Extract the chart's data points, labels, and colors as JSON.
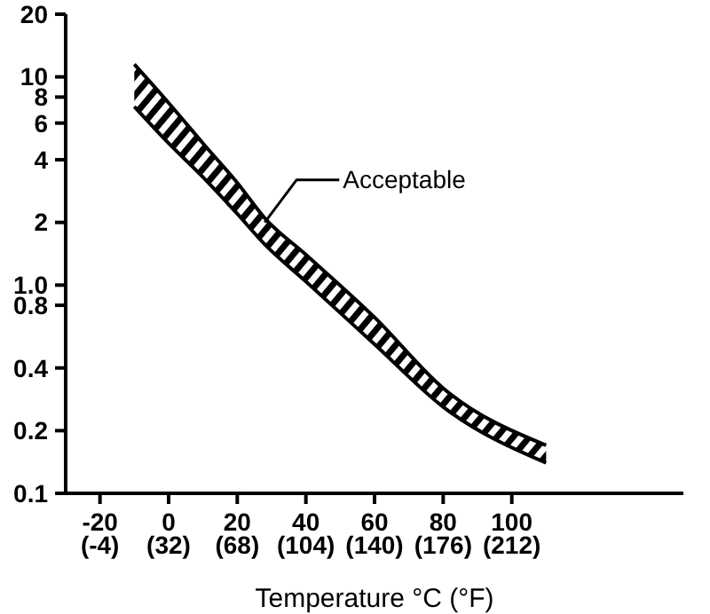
{
  "chart_data": {
    "type": "line",
    "xlabel": "Temperature °C (°F)",
    "x": [
      -10,
      0,
      10,
      20,
      28,
      40,
      60,
      80,
      110
    ],
    "series": [
      {
        "color": "#000000",
        "values": [
          7.2,
          4.8,
          3.3,
          2.2,
          1.57,
          1.04,
          0.52,
          0.26,
          0.14
        ]
      },
      {
        "color": "#000000",
        "values": [
          11.5,
          7.5,
          4.8,
          3.1,
          2.1,
          1.4,
          0.7,
          0.32,
          0.17
        ],
        "lower": [
          7.2,
          4.8,
          3.3,
          2.2,
          1.57,
          1.04,
          0.52,
          0.26,
          0.14
        ],
        "upper": [
          11.5,
          7.5,
          4.8,
          3.1,
          2.1,
          1.4,
          0.7,
          0.32,
          0.17
        ]
      }
    ],
    "log": true,
    "xlim": [
      -30,
      150
    ],
    "xticks": [
      -20,
      0,
      20,
      40,
      60,
      80,
      100
    ],
    "x2lim": [
      -22,
      302
    ],
    "x2ticks": [
      {
        "value": -4,
        "label": "(-4)"
      },
      {
        "value": 32,
        "label": "(32)"
      },
      {
        "value": 68,
        "label": "(68)"
      },
      {
        "value": 104,
        "label": "(104)"
      },
      {
        "value": 140,
        "label": "(140)"
      },
      {
        "value": 176,
        "label": "(176)"
      },
      {
        "value": 212,
        "label": "(212)"
      }
    ],
    "ylim": [
      0.1,
      20
    ],
    "yticks": [
      0.1,
      0.2,
      0.4,
      0.8,
      {
        "value": 1,
        "label": "1.0"
      },
      2,
      4,
      6,
      8,
      10,
      20
    ],
    "annotations": [
      {
        "text": "Acceptable",
        "x": 28,
        "y": 2
      }
    ],
    "marker": "none",
    "line_style": "solid"
  }
}
